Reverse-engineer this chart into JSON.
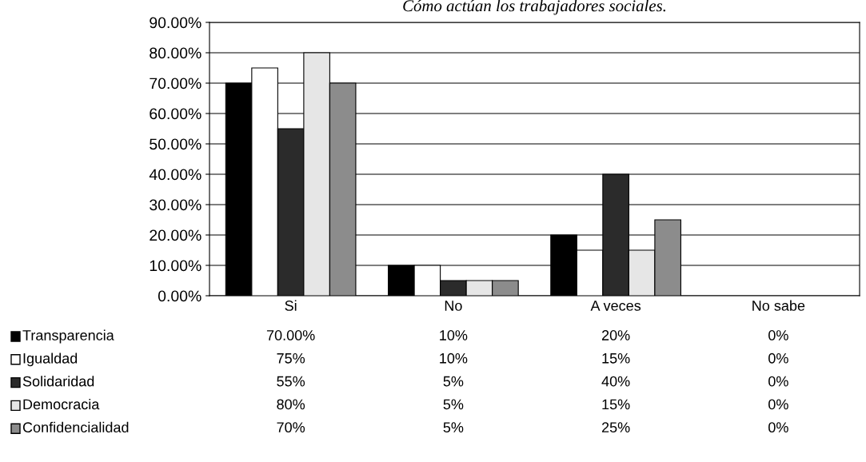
{
  "chart_data": {
    "type": "bar",
    "title": "Cómo actúan los trabajadores sociales.",
    "categories": [
      "Si",
      "No",
      "A veces",
      "No sabe"
    ],
    "series": [
      {
        "name": "Transparencia",
        "color": "#000000",
        "values": [
          70,
          10,
          20,
          0
        ],
        "value_labels": [
          "70.00%",
          "10%",
          "20%",
          "0%"
        ]
      },
      {
        "name": "Igualdad",
        "color": "#ffffff",
        "values": [
          75,
          10,
          15,
          0
        ],
        "value_labels": [
          "75%",
          "10%",
          "15%",
          "0%"
        ]
      },
      {
        "name": "Solidaridad",
        "color": "#2b2b2b",
        "values": [
          55,
          5,
          40,
          0
        ],
        "value_labels": [
          "55%",
          "5%",
          "40%",
          "0%"
        ]
      },
      {
        "name": "Democracia",
        "color": "#e6e6e6",
        "values": [
          80,
          5,
          15,
          0
        ],
        "value_labels": [
          "80%",
          "5%",
          "15%",
          "0%"
        ]
      },
      {
        "name": "Confidencialidad",
        "color": "#8c8c8c",
        "values": [
          70,
          5,
          25,
          0
        ],
        "value_labels": [
          "70%",
          "5%",
          "25%",
          "0%"
        ]
      }
    ],
    "ylim": [
      0,
      90
    ],
    "yticks": [
      {
        "value": 0,
        "label": "0.00%"
      },
      {
        "value": 10,
        "label": "10.00%"
      },
      {
        "value": 20,
        "label": "20.00%"
      },
      {
        "value": 30,
        "label": "30.00%"
      },
      {
        "value": 40,
        "label": "40.00%"
      },
      {
        "value": 50,
        "label": "50.00%"
      },
      {
        "value": 60,
        "label": "60.00%"
      },
      {
        "value": 70,
        "label": "70.00%"
      },
      {
        "value": 80,
        "label": "80.00%"
      },
      {
        "value": 90,
        "label": "90.00%"
      }
    ],
    "grid": "y",
    "legend": "bottom"
  }
}
